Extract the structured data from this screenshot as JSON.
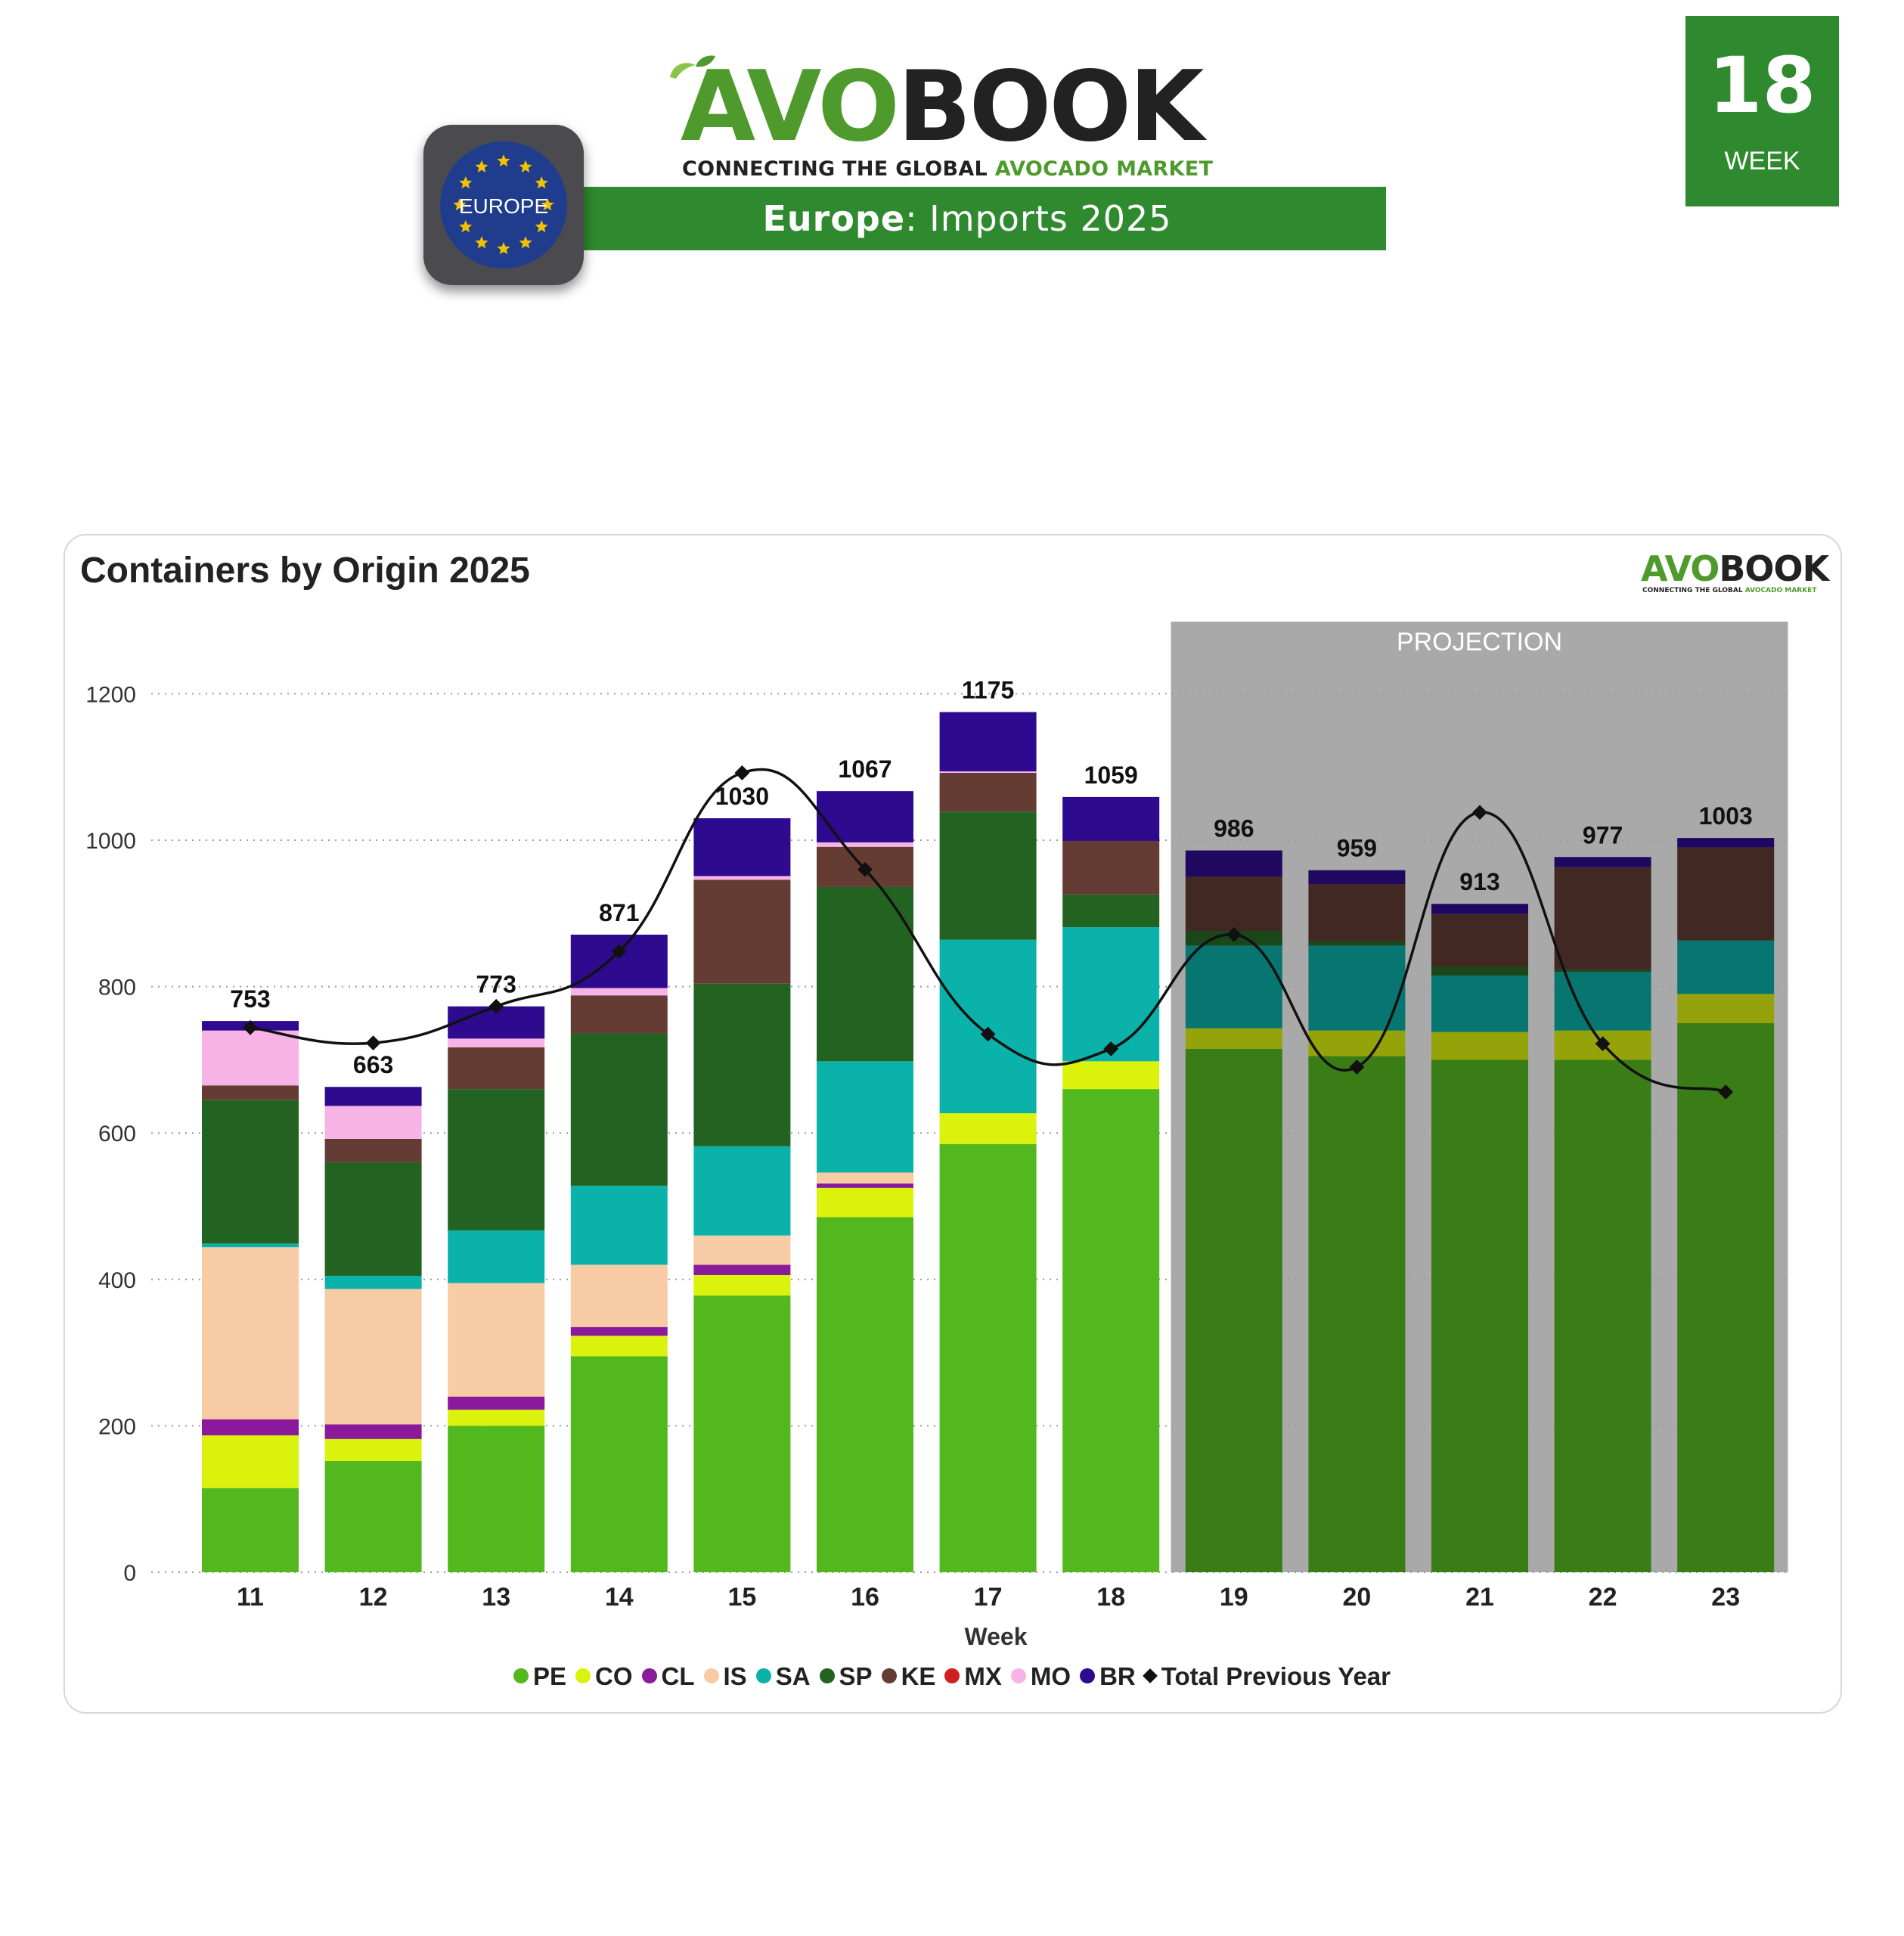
{
  "header": {
    "brand_avo": "AVO",
    "brand_book": "BOOK",
    "tagline_main": "CONNECTING THE GLOBAL ",
    "tagline_green": "AVOCADO MARKET",
    "title_bold": "Europe",
    "title_rest": ": Imports 2025",
    "region_badge": "EUROPE",
    "week_number": "18",
    "week_label": "WEEK"
  },
  "chart_data": {
    "type": "bar",
    "stacked": true,
    "title": "Containers by Origin 2025",
    "xlabel": "Week",
    "ylabel": "",
    "ylim": [
      0,
      1300
    ],
    "yticks": [
      "0",
      "200",
      "400",
      "600",
      "800",
      "1000",
      "1200"
    ],
    "grid": true,
    "legend_position": "bottom",
    "projection_label": "PROJECTION",
    "projection_weeks": [
      "19",
      "20",
      "21",
      "22",
      "23"
    ],
    "categories": [
      "11",
      "12",
      "13",
      "14",
      "15",
      "16",
      "17",
      "18",
      "19",
      "20",
      "21",
      "22",
      "23"
    ],
    "totals": [
      753,
      663,
      773,
      871,
      1030,
      1067,
      1175,
      1059,
      986,
      959,
      913,
      977,
      1003
    ],
    "series": [
      {
        "name": "PE",
        "color": "#52b81e",
        "projection_color": "#3a7d16",
        "values": [
          115,
          152,
          200,
          295,
          378,
          485,
          585,
          660,
          715,
          705,
          700,
          700,
          750
        ]
      },
      {
        "name": "CO",
        "color": "#dbf20c",
        "projection_color": "#94a30a",
        "values": [
          72,
          30,
          22,
          28,
          28,
          40,
          42,
          38,
          28,
          35,
          38,
          40,
          40
        ]
      },
      {
        "name": "CL",
        "color": "#8a1a9b",
        "projection_color": "#5e1268",
        "values": [
          22,
          20,
          18,
          12,
          14,
          6,
          0,
          0,
          0,
          0,
          0,
          0,
          0
        ]
      },
      {
        "name": "IS",
        "color": "#f7cba4",
        "projection_color": "#a88a70",
        "values": [
          235,
          185,
          155,
          85,
          40,
          15,
          0,
          0,
          0,
          0,
          0,
          0,
          0
        ]
      },
      {
        "name": "SA",
        "color": "#0ab2aa",
        "projection_color": "#077671",
        "values": [
          5,
          18,
          72,
          108,
          122,
          152,
          237,
          183,
          113,
          116,
          77,
          80,
          73
        ]
      },
      {
        "name": "SP",
        "color": "#236322",
        "projection_color": "#1a4719",
        "values": [
          196,
          155,
          193,
          208,
          222,
          238,
          175,
          45,
          20,
          6,
          12,
          3,
          0
        ]
      },
      {
        "name": "KE",
        "color": "#653c34",
        "projection_color": "#412823",
        "values": [
          20,
          32,
          57,
          52,
          142,
          55,
          53,
          73,
          74,
          78,
          72,
          140,
          127
        ]
      },
      {
        "name": "MX",
        "color": "#d01f1f",
        "projection_color": "#8c1515",
        "values": [
          0,
          0,
          0,
          0,
          0,
          0,
          0,
          0,
          0,
          0,
          0,
          0,
          0
        ]
      },
      {
        "name": "MO",
        "color": "#f7b3e6",
        "projection_color": "#a67799",
        "values": [
          75,
          45,
          12,
          10,
          5,
          6,
          2,
          0,
          0,
          0,
          0,
          0,
          0
        ]
      },
      {
        "name": "BR",
        "color": "#2e0b8e",
        "projection_color": "#200860",
        "values": [
          13,
          26,
          44,
          73,
          79,
          70,
          81,
          60,
          36,
          19,
          14,
          14,
          13
        ]
      }
    ],
    "line_series": {
      "name": "Total Previous Year",
      "color": "#111111",
      "values": [
        744,
        723,
        773,
        848,
        1092,
        960,
        735,
        715,
        871,
        690,
        1038,
        722,
        656
      ]
    }
  }
}
